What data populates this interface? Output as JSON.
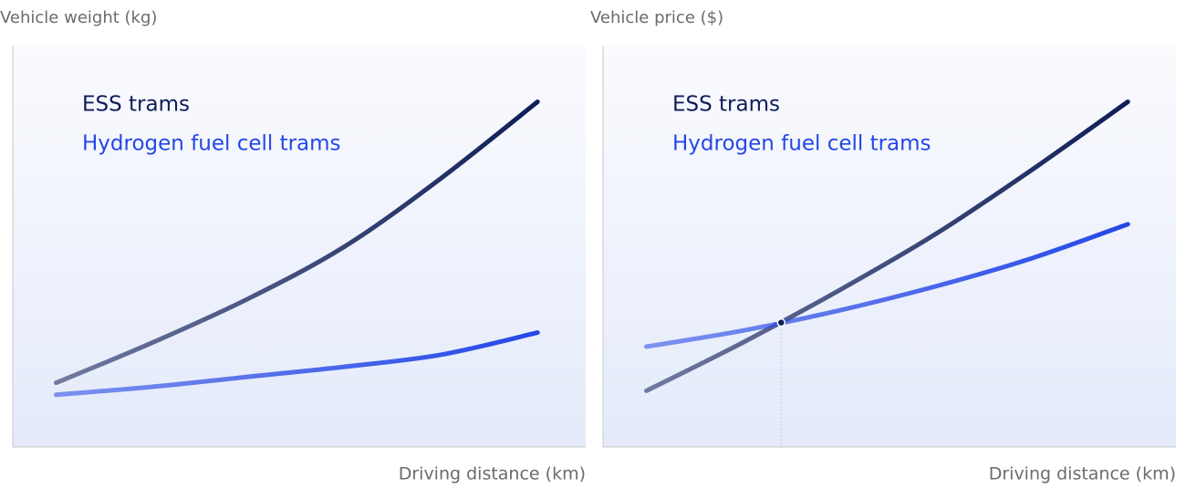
{
  "chart_data": [
    {
      "type": "line",
      "title": "Vehicle weight (kg)",
      "x_label": "Driving distance (km)",
      "x": [
        0,
        2,
        4,
        6,
        8,
        10
      ],
      "xlim": [
        -0.9,
        11
      ],
      "ylim": [
        0,
        100
      ],
      "legend": "upper left",
      "series": [
        {
          "name": "ESS trams",
          "color": "#0f1d57",
          "values": [
            16,
            26,
            37,
            50,
            67,
            86
          ]
        },
        {
          "name": "Hydrogen fuel cell trams",
          "color": "#2447e6",
          "values": [
            13,
            15,
            17.5,
            20,
            23,
            28.5
          ]
        }
      ]
    },
    {
      "type": "line",
      "title": "Vehicle price ($)",
      "x_label": "Driving distance (km)",
      "x": [
        0,
        2,
        4,
        6,
        8,
        10
      ],
      "xlim": [
        -0.9,
        11
      ],
      "ylim": [
        0,
        100
      ],
      "legend": "upper left",
      "series": [
        {
          "name": "ESS trams",
          "color": "#0f1d57",
          "values": [
            14,
            26,
            39,
            53,
            69,
            86
          ]
        },
        {
          "name": "Hydrogen fuel cell trams",
          "color": "#2447e6",
          "values": [
            25,
            29,
            34,
            40,
            47,
            55.5
          ]
        }
      ],
      "markers": [
        {
          "x": 2.8,
          "y": 31
        }
      ]
    }
  ]
}
